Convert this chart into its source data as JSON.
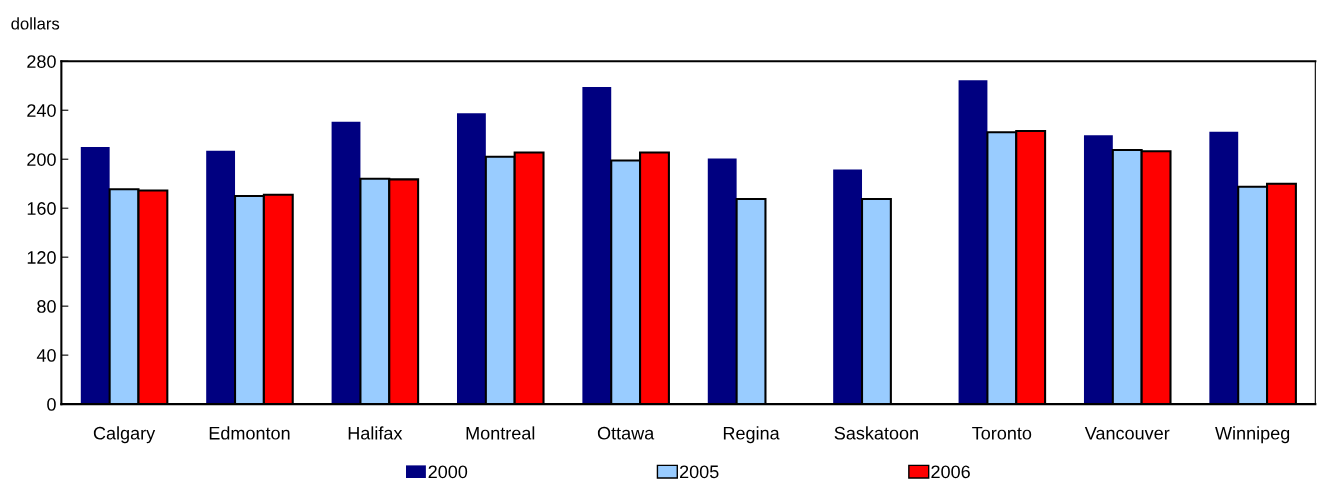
{
  "chart_data": {
    "type": "bar",
    "ylabel": "dollars",
    "categories": [
      "Calgary",
      "Edmonton",
      "Halifax",
      "Montreal",
      "Ottawa",
      "Regina",
      "Saskatoon",
      "Toronto",
      "Vancouver",
      "Winnipeg"
    ],
    "series": [
      {
        "name": "2000",
        "color": "#000080",
        "values": [
          210,
          207,
          230.5,
          237.5,
          259,
          200.5,
          191.5,
          264.5,
          219.5,
          222.5
        ]
      },
      {
        "name": "2005",
        "color": "#99ccff",
        "values": [
          175.5,
          170,
          184,
          202,
          199,
          167.5,
          167.5,
          222,
          207.5,
          177.5
        ]
      },
      {
        "name": "2006",
        "color": "#ff0000",
        "values": [
          174.5,
          171,
          183.5,
          205.5,
          205.5,
          null,
          null,
          223,
          206.5,
          180
        ]
      }
    ],
    "ylim": [
      0,
      280
    ],
    "yticks": [
      0,
      40,
      80,
      120,
      160,
      200,
      240,
      280
    ],
    "grid": false,
    "legend": "bottom"
  }
}
